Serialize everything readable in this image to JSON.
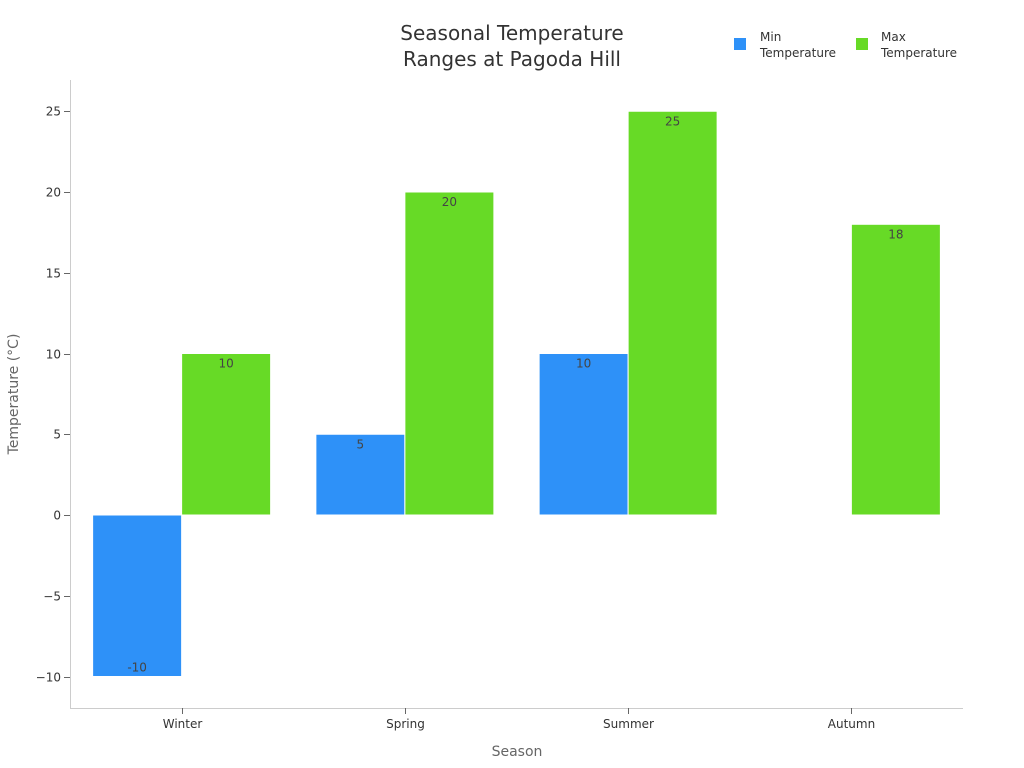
{
  "chart_data": {
    "type": "bar",
    "title_lines": [
      "Seasonal Temperature",
      "Ranges at Pagoda Hill"
    ],
    "xlabel": "Season",
    "ylabel": "Temperature (°C)",
    "categories": [
      "Winter",
      "Spring",
      "Summer",
      "Autumn"
    ],
    "series": [
      {
        "name": "Min Temperature",
        "legend_lines": [
          "Min",
          "Temperature"
        ],
        "color": "#2E91F8",
        "values": [
          -10,
          5,
          10,
          null
        ]
      },
      {
        "name": "Max Temperature",
        "legend_lines": [
          "Max",
          "Temperature"
        ],
        "color": "#67DA26",
        "values": [
          10,
          20,
          25,
          18
        ]
      }
    ],
    "ylim": [
      -12,
      27
    ],
    "yticks": [
      -10,
      -5,
      0,
      5,
      10,
      15,
      20,
      25
    ],
    "ytick_labels": [
      "−10",
      "−5",
      "0",
      "5",
      "10",
      "15",
      "20",
      "25"
    ],
    "grid": false,
    "legend_position": "top-right"
  }
}
